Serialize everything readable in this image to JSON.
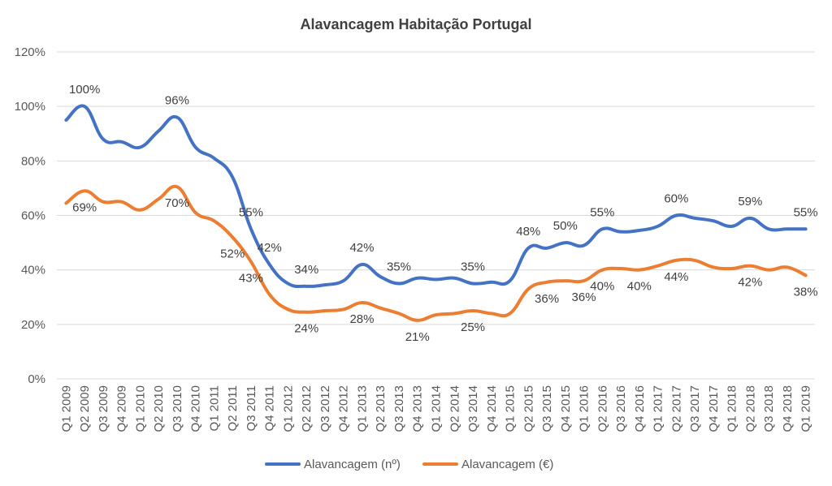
{
  "chart_data": {
    "type": "line",
    "title": "Alavancagem Habitação Portugal",
    "xlabel": "",
    "ylabel": "",
    "ylim": [
      0,
      120
    ],
    "yticks": [
      "0%",
      "20%",
      "40%",
      "60%",
      "80%",
      "100%",
      "120%"
    ],
    "grid": true,
    "legend_position": "bottom",
    "categories": [
      "Q1 2009",
      "Q2 2009",
      "Q3 2009",
      "Q4 2009",
      "Q1 2010",
      "Q2 2010",
      "Q3 2010",
      "Q4 2010",
      "Q1 2011",
      "Q2 2011",
      "Q3 2011",
      "Q4 2011",
      "Q1 2012",
      "Q2 2012",
      "Q3 2012",
      "Q4 2012",
      "Q1 2013",
      "Q2 2013",
      "Q3 2013",
      "Q4 2013",
      "Q1 2014",
      "Q2 2014",
      "Q3 2014",
      "Q4 2014",
      "Q1 2015",
      "Q2 2015",
      "Q3 2015",
      "Q4 2015",
      "Q1 2016",
      "Q2 2016",
      "Q3 2016",
      "Q4 2016",
      "Q1 2017",
      "Q2 2017",
      "Q3 2017",
      "Q4 2017",
      "Q1 2018",
      "Q2 2018",
      "Q3 2018",
      "Q4 2018",
      "Q1 2019"
    ],
    "series": [
      {
        "name": "Alavancagem (nº)",
        "color": "#4472c4",
        "values": [
          95,
          100,
          88,
          87,
          85,
          91,
          96,
          85,
          81,
          74,
          55,
          42,
          35,
          34,
          34.5,
          36,
          42,
          37.5,
          35,
          37,
          36.5,
          37,
          35,
          35.5,
          36,
          48,
          48,
          50,
          49,
          55,
          54,
          54.5,
          56,
          60,
          59,
          58,
          56,
          59,
          55,
          55,
          55
        ],
        "labels": [
          {
            "index": 1,
            "text": "100%",
            "pos": "above"
          },
          {
            "index": 6,
            "text": "96%",
            "pos": "above"
          },
          {
            "index": 10,
            "text": "55%",
            "pos": "above"
          },
          {
            "index": 11,
            "text": "42%",
            "pos": "above"
          },
          {
            "index": 13,
            "text": "34%",
            "pos": "above"
          },
          {
            "index": 16,
            "text": "42%",
            "pos": "above"
          },
          {
            "index": 18,
            "text": "35%",
            "pos": "above"
          },
          {
            "index": 22,
            "text": "35%",
            "pos": "above"
          },
          {
            "index": 25,
            "text": "48%",
            "pos": "above"
          },
          {
            "index": 27,
            "text": "50%",
            "pos": "above"
          },
          {
            "index": 29,
            "text": "55%",
            "pos": "above"
          },
          {
            "index": 33,
            "text": "60%",
            "pos": "above"
          },
          {
            "index": 37,
            "text": "59%",
            "pos": "above"
          },
          {
            "index": 40,
            "text": "55%",
            "pos": "above"
          }
        ]
      },
      {
        "name": "Alavancagem (€)",
        "color": "#ed7d31",
        "values": [
          64.5,
          69,
          65,
          65,
          62,
          66,
          70.5,
          61,
          58,
          52,
          43,
          31,
          25.5,
          24.5,
          25,
          25.5,
          28,
          26,
          24,
          21.5,
          23.5,
          24,
          25,
          24,
          24,
          33,
          35.5,
          36,
          36,
          40,
          40.5,
          40,
          41.5,
          43.5,
          43.5,
          41,
          40.5,
          41.5,
          40,
          41,
          38
        ],
        "labels": [
          {
            "index": 1,
            "text": "69%",
            "pos": "below"
          },
          {
            "index": 6,
            "text": "70%",
            "pos": "below"
          },
          {
            "index": 9,
            "text": "52%",
            "pos": "below"
          },
          {
            "index": 10,
            "text": "43%",
            "pos": "below"
          },
          {
            "index": 13,
            "text": "24%",
            "pos": "below"
          },
          {
            "index": 16,
            "text": "28%",
            "pos": "below"
          },
          {
            "index": 19,
            "text": "21%",
            "pos": "below"
          },
          {
            "index": 22,
            "text": "25%",
            "pos": "below"
          },
          {
            "index": 26,
            "text": "36%",
            "pos": "below"
          },
          {
            "index": 28,
            "text": "36%",
            "pos": "below"
          },
          {
            "index": 29,
            "text": "40%",
            "pos": "below"
          },
          {
            "index": 31,
            "text": "40%",
            "pos": "below"
          },
          {
            "index": 33,
            "text": "44%",
            "pos": "below"
          },
          {
            "index": 37,
            "text": "42%",
            "pos": "below"
          },
          {
            "index": 40,
            "text": "38%",
            "pos": "below"
          }
        ]
      }
    ]
  }
}
